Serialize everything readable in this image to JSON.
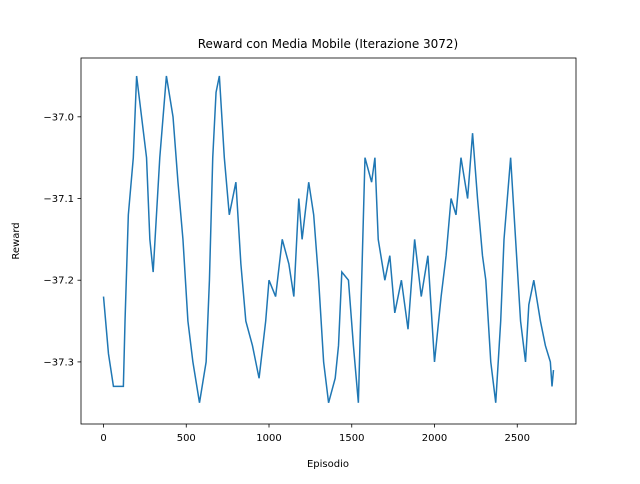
{
  "chart_data": {
    "type": "line",
    "title": "Reward con Media Mobile (Iterazione 3072)",
    "x_label": "Episodio",
    "y_label": "Reward",
    "x": [
      0,
      30,
      60,
      90,
      120,
      130,
      150,
      180,
      200,
      230,
      260,
      280,
      300,
      320,
      340,
      380,
      420,
      450,
      480,
      510,
      540,
      580,
      620,
      640,
      660,
      680,
      700,
      730,
      760,
      800,
      830,
      860,
      900,
      940,
      980,
      1000,
      1040,
      1080,
      1120,
      1150,
      1180,
      1200,
      1240,
      1270,
      1300,
      1330,
      1360,
      1400,
      1420,
      1440,
      1480,
      1510,
      1540,
      1560,
      1580,
      1620,
      1640,
      1660,
      1700,
      1730,
      1760,
      1800,
      1840,
      1880,
      1920,
      1960,
      2000,
      2040,
      2070,
      2100,
      2130,
      2160,
      2200,
      2230,
      2260,
      2290,
      2310,
      2340,
      2370,
      2400,
      2420,
      2440,
      2460,
      2490,
      2520,
      2550,
      2570,
      2600,
      2640,
      2670,
      2700,
      2710,
      2719
    ],
    "series": [
      {
        "name": "Reward",
        "color": "#1f77b4",
        "values": [
          -37.22,
          -37.29,
          -37.33,
          -37.33,
          -37.33,
          -37.25,
          -37.12,
          -37.05,
          -36.95,
          -37.0,
          -37.05,
          -37.15,
          -37.19,
          -37.12,
          -37.05,
          -36.95,
          -37.0,
          -37.08,
          -37.15,
          -37.25,
          -37.3,
          -37.35,
          -37.3,
          -37.2,
          -37.05,
          -36.97,
          -36.95,
          -37.05,
          -37.12,
          -37.08,
          -37.18,
          -37.25,
          -37.28,
          -37.32,
          -37.25,
          -37.2,
          -37.22,
          -37.15,
          -37.18,
          -37.22,
          -37.1,
          -37.15,
          -37.08,
          -37.12,
          -37.2,
          -37.3,
          -37.35,
          -37.32,
          -37.28,
          -37.19,
          -37.2,
          -37.28,
          -37.35,
          -37.2,
          -37.05,
          -37.08,
          -37.05,
          -37.15,
          -37.2,
          -37.17,
          -37.24,
          -37.2,
          -37.26,
          -37.15,
          -37.22,
          -37.17,
          -37.3,
          -37.22,
          -37.17,
          -37.1,
          -37.12,
          -37.05,
          -37.1,
          -37.02,
          -37.1,
          -37.17,
          -37.2,
          -37.3,
          -37.35,
          -37.25,
          -37.15,
          -37.1,
          -37.05,
          -37.15,
          -37.25,
          -37.3,
          -37.23,
          -37.2,
          -37.25,
          -37.28,
          -37.3,
          -37.33,
          -37.31
        ]
      }
    ],
    "xlim": [
      -136,
      2855
    ],
    "xticks": [
      0,
      500,
      1000,
      1500,
      2000,
      2500
    ],
    "ylim": [
      -37.376,
      -36.928
    ],
    "yticks": [
      {
        "value": -37.3,
        "label": "−37.3"
      },
      {
        "value": -37.2,
        "label": "−37.2"
      },
      {
        "value": -37.1,
        "label": "−37.1"
      },
      {
        "value": -37.0,
        "label": "−37.0"
      }
    ],
    "grid": false
  }
}
